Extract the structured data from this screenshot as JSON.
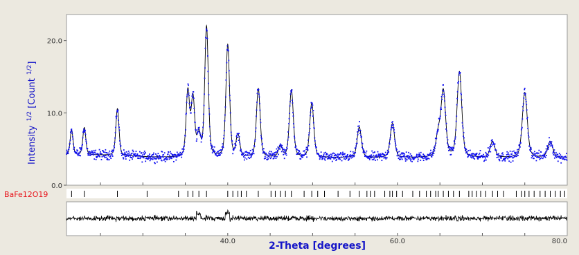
{
  "chart_data": {
    "type": "scatter",
    "xlabel": "2-Theta [degrees]",
    "ylabel": {
      "prefix": "Intensity",
      "sup": "1/2",
      "mid": " [Count",
      "sup2": "1/2",
      "suffix": "]"
    },
    "xlim": [
      21,
      80
    ],
    "ylim": [
      0,
      23.6
    ],
    "x_ticks": [
      40,
      60,
      80
    ],
    "x_tick_labels": [
      "40.0",
      "60.0",
      "80.0"
    ],
    "y_ticks": [
      0,
      10,
      20
    ],
    "y_tick_labels": [
      "0.0",
      "10.0",
      "20.0"
    ],
    "background": 3.8,
    "peaks": [
      {
        "x": 21.6,
        "h": 3.5
      },
      {
        "x": 23.1,
        "h": 3.8
      },
      {
        "x": 27.0,
        "h": 6.5
      },
      {
        "x": 35.3,
        "h": 9.0
      },
      {
        "x": 35.9,
        "h": 8.0
      },
      {
        "x": 36.6,
        "h": 3.0
      },
      {
        "x": 37.5,
        "h": 18.0
      },
      {
        "x": 40.0,
        "h": 15.5
      },
      {
        "x": 41.2,
        "h": 3.0
      },
      {
        "x": 43.6,
        "h": 9.5
      },
      {
        "x": 46.2,
        "h": 1.5
      },
      {
        "x": 47.5,
        "h": 9.3
      },
      {
        "x": 49.9,
        "h": 7.5
      },
      {
        "x": 55.5,
        "h": 4.2
      },
      {
        "x": 59.4,
        "h": 4.7
      },
      {
        "x": 64.8,
        "h": 3.0
      },
      {
        "x": 65.4,
        "h": 9.0
      },
      {
        "x": 67.3,
        "h": 11.8
      },
      {
        "x": 71.2,
        "h": 2.2
      },
      {
        "x": 75.0,
        "h": 9.0
      },
      {
        "x": 78.0,
        "h": 2.2
      }
    ],
    "phase_label": "BaFe12O19",
    "reflection_ticks": [
      21.6,
      23.1,
      27.0,
      30.5,
      34.2,
      35.3,
      35.9,
      36.6,
      37.5,
      40.0,
      40.6,
      41.2,
      41.6,
      42.2,
      43.6,
      45.1,
      45.6,
      46.2,
      46.8,
      47.5,
      49.0,
      49.9,
      50.6,
      51.4,
      53.0,
      54.4,
      55.5,
      56.4,
      56.8,
      57.3,
      58.5,
      59.1,
      59.4,
      59.9,
      60.6,
      61.8,
      62.6,
      63.4,
      63.9,
      64.5,
      64.8,
      65.4,
      66.0,
      66.6,
      67.3,
      68.4,
      68.8,
      69.3,
      69.8,
      70.4,
      71.2,
      71.8,
      72.5,
      74.0,
      74.6,
      75.0,
      75.5,
      76.1,
      76.8,
      77.4,
      78.0,
      78.6,
      79.2,
      79.7
    ],
    "colors": {
      "observed": "#1010f0",
      "calculated": "#000000",
      "phase_label": "#e8161d",
      "axis_label": "#1414c8",
      "background": "#ece9e0"
    },
    "grid": false
  }
}
